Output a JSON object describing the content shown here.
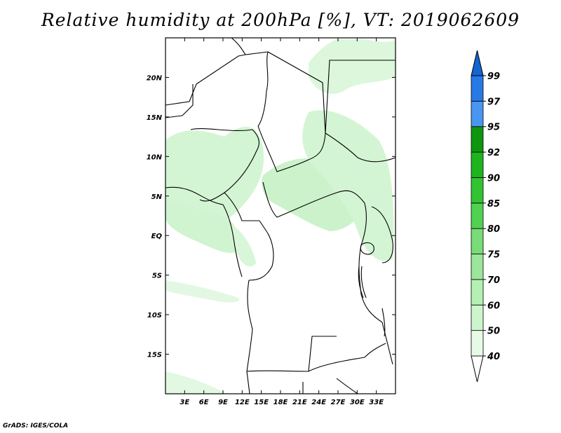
{
  "title": "Relative humidity at 200hPa [%], VT: 2019062609",
  "credit": "GrADS: IGES/COLA",
  "map": {
    "lon_range": [
      0,
      36
    ],
    "lat_range": [
      -20,
      25
    ],
    "lat_ticks": [
      "20N",
      "15N",
      "10N",
      "5N",
      "EQ",
      "5S",
      "10S",
      "15S"
    ],
    "lon_ticks": [
      "3E",
      "6E",
      "9E",
      "12E",
      "15E",
      "18E",
      "21E",
      "24E",
      "27E",
      "30E",
      "33E"
    ]
  },
  "colorbar": {
    "levels": [
      "40",
      "50",
      "60",
      "70",
      "75",
      "80",
      "85",
      "90",
      "92",
      "95",
      "97",
      "99"
    ],
    "colors": [
      "#ffffff",
      "#e6fae6",
      "#cdf5cd",
      "#b4f0b4",
      "#9be69b",
      "#78dc78",
      "#50d250",
      "#32c332",
      "#1eb41e",
      "#0f960f",
      "#4896f0",
      "#2878e6",
      "#1464d2"
    ]
  },
  "colors": {
    "land_outline": "#000000",
    "humid_light": "#d2f5d2",
    "humid_mid": "#b4ebb4"
  }
}
